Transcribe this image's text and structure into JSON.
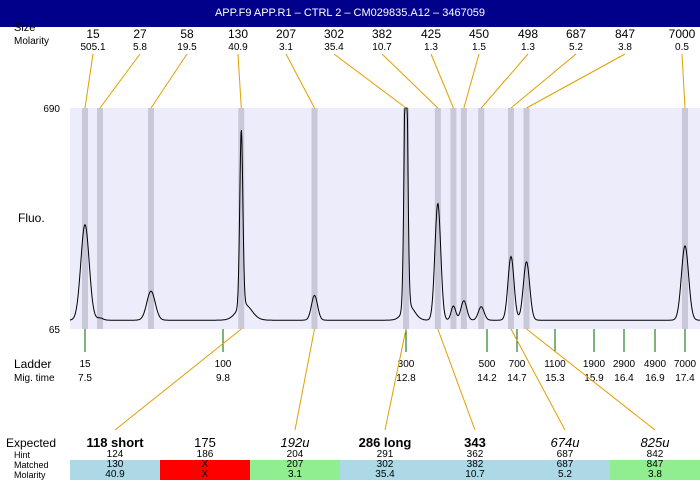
{
  "window": {
    "title": "APP.F9  APP.R1 – CTRL 2 – CM029835.A12 – 3467059"
  },
  "labels": {
    "size_row": "Size",
    "molarity_row": "Molarity",
    "fluo_axis": "Fluo.",
    "ladder_row": "Ladder",
    "migtime_row": "Mig. time",
    "expected_row": "Expected",
    "hint_row": "Hint",
    "matched_row": "Matched",
    "molarity_row2": "Molarity"
  },
  "colors": {
    "title_bg": "#00008b",
    "plot_bg": "#ececfa",
    "peak_band": "#c8c8d8",
    "leader": "#e0a000",
    "ladder_tick": "#006400",
    "match_blue": "#add8e6",
    "match_red": "#ff0000",
    "match_green": "#90ee90"
  },
  "chart_data": {
    "type": "line",
    "ylabel": "Fluo.",
    "ylim": [
      65,
      690
    ],
    "ytick_labels": [
      "690",
      "65"
    ],
    "peaks": [
      {
        "size": "15",
        "molarity": "505.1",
        "migtime": 7.5
      },
      {
        "size": "27",
        "molarity": "5.8",
        "migtime": 7.75
      },
      {
        "size": "58",
        "molarity": "19.5",
        "migtime": 8.6
      },
      {
        "size": "130",
        "molarity": "40.9",
        "migtime": 10.1
      },
      {
        "size": "207",
        "molarity": "3.1",
        "migtime": 11.3
      },
      {
        "size": "302",
        "molarity": "35.4",
        "migtime": 12.8
      },
      {
        "size": "382",
        "molarity": "10.7",
        "migtime": 13.35
      },
      {
        "size": "425",
        "molarity": "1.3",
        "migtime": 13.62
      },
      {
        "size": "450",
        "molarity": "1.5",
        "migtime": 13.8
      },
      {
        "size": "498",
        "molarity": "1.3",
        "migtime": 14.1
      },
      {
        "size": "687",
        "molarity": "5.2",
        "migtime": 14.6
      },
      {
        "size": "847",
        "molarity": "3.8",
        "migtime": 14.85
      },
      {
        "size": "7000",
        "molarity": "0.5",
        "migtime": 17.4
      }
    ],
    "ladder": [
      {
        "size": "15",
        "time": "7.5"
      },
      {
        "size": "100",
        "time": "9.8"
      },
      {
        "size": "300",
        "time": "12.8"
      },
      {
        "size": "500",
        "time": "14.2"
      },
      {
        "size": "700",
        "time": "14.7"
      },
      {
        "size": "1100",
        "time": "15.3"
      },
      {
        "size": "1900",
        "time": "15.9"
      },
      {
        "size": "2900",
        "time": "16.4"
      },
      {
        "size": "4900",
        "time": "16.9"
      },
      {
        "size": "7000",
        "time": "17.4"
      }
    ],
    "trace": {
      "baseline": 90,
      "signal": [
        {
          "t": 7.5,
          "h": 270,
          "w": 0.07
        },
        {
          "t": 7.75,
          "h": 6,
          "w": 0.05
        },
        {
          "t": 8.6,
          "h": 82,
          "w": 0.07
        },
        {
          "t": 10.1,
          "h": 500,
          "w": 0.025
        },
        {
          "t": 10.15,
          "h": 45,
          "w": 0.12
        },
        {
          "t": 11.3,
          "h": 70,
          "w": 0.05
        },
        {
          "t": 12.8,
          "h": 810,
          "w": 0.028
        },
        {
          "t": 12.85,
          "h": 40,
          "w": 0.1
        },
        {
          "t": 13.35,
          "h": 330,
          "w": 0.05
        },
        {
          "t": 13.62,
          "h": 40,
          "w": 0.04
        },
        {
          "t": 13.8,
          "h": 55,
          "w": 0.05
        },
        {
          "t": 14.1,
          "h": 38,
          "w": 0.05
        },
        {
          "t": 14.6,
          "h": 180,
          "w": 0.05
        },
        {
          "t": 14.85,
          "h": 165,
          "w": 0.05
        },
        {
          "t": 17.4,
          "h": 210,
          "w": 0.06
        }
      ]
    }
  },
  "expected_table": {
    "columns": [
      {
        "expected": "118 short",
        "style": "bold",
        "hint": "124",
        "matched": "130",
        "molarity": "40.9",
        "status": "blue",
        "matched_time": 10.1
      },
      {
        "expected": "175",
        "style": "normal",
        "hint": "186",
        "matched": "X",
        "molarity": "X",
        "status": "red",
        "matched_time": null
      },
      {
        "expected": "192u",
        "style": "italic",
        "hint": "204",
        "matched": "207",
        "molarity": "3.1",
        "status": "green",
        "matched_time": 11.3
      },
      {
        "expected": "286 long",
        "style": "bold",
        "hint": "291",
        "matched": "302",
        "molarity": "35.4",
        "status": "blue",
        "matched_time": 12.8
      },
      {
        "expected": "343",
        "style": "bold",
        "hint": "362",
        "matched": "382",
        "molarity": "10.7",
        "status": "blue",
        "matched_time": 13.35
      },
      {
        "expected": "674u",
        "style": "italic",
        "hint": "687",
        "matched": "687",
        "molarity": "5.2",
        "status": "blue",
        "matched_time": 14.6
      },
      {
        "expected": "825u",
        "style": "italic",
        "hint": "842",
        "matched": "847",
        "molarity": "3.8",
        "status": "green",
        "matched_time": 14.85
      }
    ]
  }
}
